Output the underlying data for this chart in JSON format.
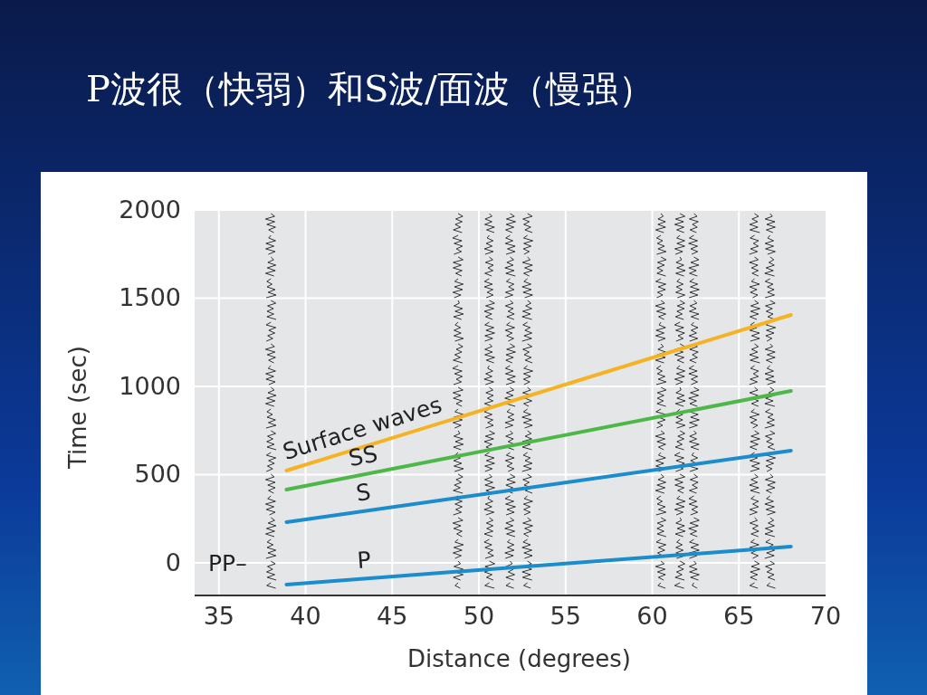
{
  "chart_data": {
    "type": "line",
    "title": "P波很（快弱）和S波/面波（慢强）",
    "xlabel": "Distance (degrees)",
    "ylabel": "Time (sec)",
    "xlim": [
      33.6,
      70
    ],
    "ylim": [
      -185,
      2000
    ],
    "xticks": [
      35,
      40,
      45,
      50,
      55,
      60,
      65,
      70
    ],
    "yticks": [
      0,
      500,
      1000,
      1500,
      2000
    ],
    "grid": true,
    "x": [
      38.9,
      68
    ],
    "marker": "none",
    "line_style": "solid",
    "series": [
      {
        "name": "Surface waves",
        "color": "#f5b323",
        "values": [
          523,
          1405
        ]
      },
      {
        "name": "SS",
        "color": "#4db848",
        "values": [
          415,
          974
        ]
      },
      {
        "name": "S",
        "color": "#1b8ccc",
        "values": [
          231,
          636
        ]
      },
      {
        "name": "P",
        "color": "#1b8ccc",
        "values": [
          -123,
          92
        ]
      }
    ],
    "annotations": [
      "PP–"
    ]
  }
}
